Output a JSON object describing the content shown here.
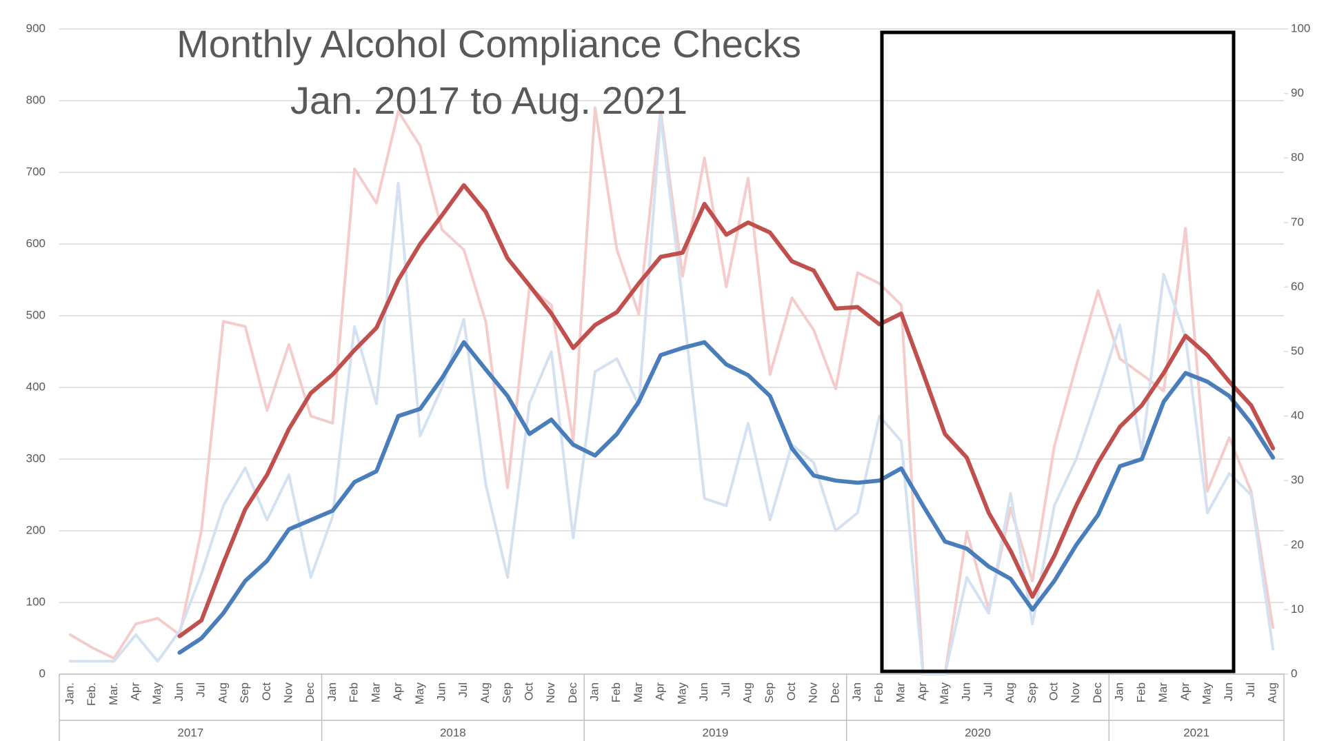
{
  "chart_data": {
    "type": "line",
    "title": "Monthly Alcohol Compliance Checks",
    "subtitle": "Jan. 2017 to Aug. 2021",
    "categories": [
      "Jan.",
      "Feb.",
      "Mar.",
      "Apr",
      "May",
      "Jun",
      "Jul",
      "Aug",
      "Sep",
      "Oct",
      "Nov",
      "Dec",
      "Jan",
      "Feb",
      "Mar",
      "Apr",
      "May",
      "Jun",
      "Jul",
      "Aug",
      "Sep",
      "Oct",
      "Nov",
      "Dec",
      "Jan",
      "Feb",
      "Mar",
      "Apr",
      "May",
      "Jun",
      "Jul",
      "Aug",
      "Sep",
      "Oct",
      "Nov",
      "Dec",
      "Jan",
      "Feb",
      "Mar",
      "Apr",
      "May",
      "Jun",
      "Jul",
      "Aug",
      "Sep",
      "Oct",
      "Nov",
      "Dec",
      "Jan",
      "Feb",
      "Mar",
      "Apr",
      "May",
      "Jun",
      "Jul",
      "Aug"
    ],
    "year_groups": [
      {
        "label": "2017",
        "months": 12
      },
      {
        "label": "2018",
        "months": 12
      },
      {
        "label": "2019",
        "months": 12
      },
      {
        "label": "2020",
        "months": 12
      },
      {
        "label": "2021",
        "months": 8
      }
    ],
    "series": [
      {
        "color": "#f4cccc",
        "width": 4,
        "values": [
          55,
          37,
          22,
          70,
          78,
          55,
          200,
          492,
          485,
          368,
          460,
          360,
          350,
          705,
          657,
          785,
          737,
          620,
          592,
          492,
          260,
          540,
          515,
          325,
          790,
          592,
          502,
          785,
          555,
          720,
          540,
          692,
          418,
          525,
          480,
          398,
          560,
          545,
          515,
          0,
          0,
          198,
          90,
          232,
          130,
          318,
          430,
          535,
          440,
          418,
          395,
          622,
          255,
          330,
          255,
          65
        ]
      },
      {
        "color": "#d4e1f1",
        "width": 4,
        "values": [
          18,
          18,
          18,
          55,
          18,
          60,
          140,
          235,
          288,
          215,
          278,
          135,
          220,
          485,
          377,
          685,
          332,
          400,
          495,
          265,
          135,
          378,
          450,
          190,
          422,
          440,
          375,
          778,
          520,
          245,
          235,
          350,
          215,
          320,
          295,
          200,
          225,
          360,
          325,
          0,
          0,
          135,
          85,
          252,
          70,
          235,
          300,
          390,
          487,
          310,
          558,
          470,
          225,
          280,
          250,
          35
        ]
      },
      {
        "color": "#c0504d",
        "width": 6,
        "values": [
          null,
          null,
          null,
          null,
          null,
          53,
          75,
          155,
          230,
          278,
          342,
          392,
          418,
          452,
          483,
          550,
          600,
          640,
          682,
          645,
          580,
          542,
          503,
          455,
          487,
          505,
          545,
          582,
          588,
          656,
          613,
          630,
          616,
          576,
          563,
          510,
          512,
          488,
          503,
          420,
          335,
          302,
          225,
          172,
          108,
          165,
          235,
          295,
          345,
          375,
          420,
          472,
          445,
          408,
          375,
          315
        ]
      },
      {
        "color": "#4a7ebb",
        "width": 6,
        "values": [
          null,
          null,
          null,
          null,
          null,
          30,
          50,
          85,
          130,
          158,
          202,
          215,
          228,
          268,
          283,
          360,
          370,
          413,
          463,
          425,
          388,
          335,
          355,
          320,
          305,
          335,
          380,
          445,
          455,
          463,
          432,
          417,
          388,
          315,
          277,
          270,
          267,
          270,
          287,
          235,
          185,
          175,
          150,
          133,
          90,
          130,
          180,
          222,
          290,
          300,
          380,
          420,
          408,
          388,
          350,
          302
        ]
      }
    ],
    "ylim": [
      0,
      900
    ],
    "yticks": [
      0,
      100,
      200,
      300,
      400,
      500,
      600,
      700,
      800,
      900
    ],
    "y2lim": [
      0,
      100
    ],
    "y2ticks": [
      0,
      10,
      20,
      30,
      40,
      50,
      60,
      70,
      80,
      90,
      100
    ],
    "grid": true
  }
}
